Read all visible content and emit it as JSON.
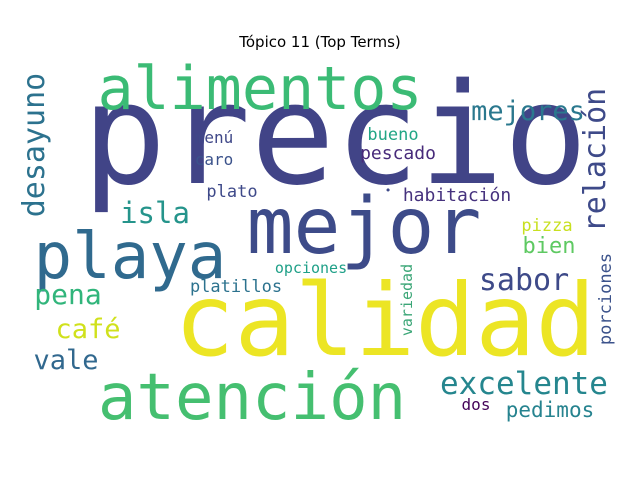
{
  "title": "Tópico 11 (Top Terms)",
  "words": [
    {
      "text": "precio",
      "color": "#414487"
    },
    {
      "text": "calidad",
      "color": "#ece524"
    },
    {
      "text": "mejor",
      "color": "#3d4b89"
    },
    {
      "text": "alimentos",
      "color": "#3bbb75"
    },
    {
      "text": "atención",
      "color": "#45bf70"
    },
    {
      "text": "playa",
      "color": "#306a8e"
    },
    {
      "text": "desayuno",
      "color": "#2c728e"
    },
    {
      "text": "relación",
      "color": "#3e4a89"
    },
    {
      "text": "excelente",
      "color": "#25868e"
    },
    {
      "text": "mejores",
      "color": "#2a788e"
    },
    {
      "text": "isla",
      "color": "#25948b"
    },
    {
      "text": "sabor",
      "color": "#3e4a89"
    },
    {
      "text": "pena",
      "color": "#31b57b"
    },
    {
      "text": "café",
      "color": "#d0e11c"
    },
    {
      "text": "vale",
      "color": "#31688e"
    },
    {
      "text": "pedimos",
      "color": "#26838f"
    },
    {
      "text": "bien",
      "color": "#5ec962"
    },
    {
      "text": "pizza",
      "color": "#c8e020"
    },
    {
      "text": "porciones",
      "color": "#3b528b"
    },
    {
      "text": "variedad",
      "color": "#3ba677"
    },
    {
      "text": "habitación",
      "color": "#46327e"
    },
    {
      "text": "pescado",
      "color": "#472a7a"
    },
    {
      "text": "bueno",
      "color": "#21a685"
    },
    {
      "text": "menú",
      "color": "#3f4788"
    },
    {
      "text": "caro",
      "color": "#3b528b"
    },
    {
      "text": "plato",
      "color": "#3e4989"
    },
    {
      "text": "opciones",
      "color": "#1fa088"
    },
    {
      "text": "platillos",
      "color": "#2c728e"
    },
    {
      "text": "dos",
      "color": "#450559"
    },
    {
      "text": "dot",
      "color": "#3e4a89"
    }
  ]
}
